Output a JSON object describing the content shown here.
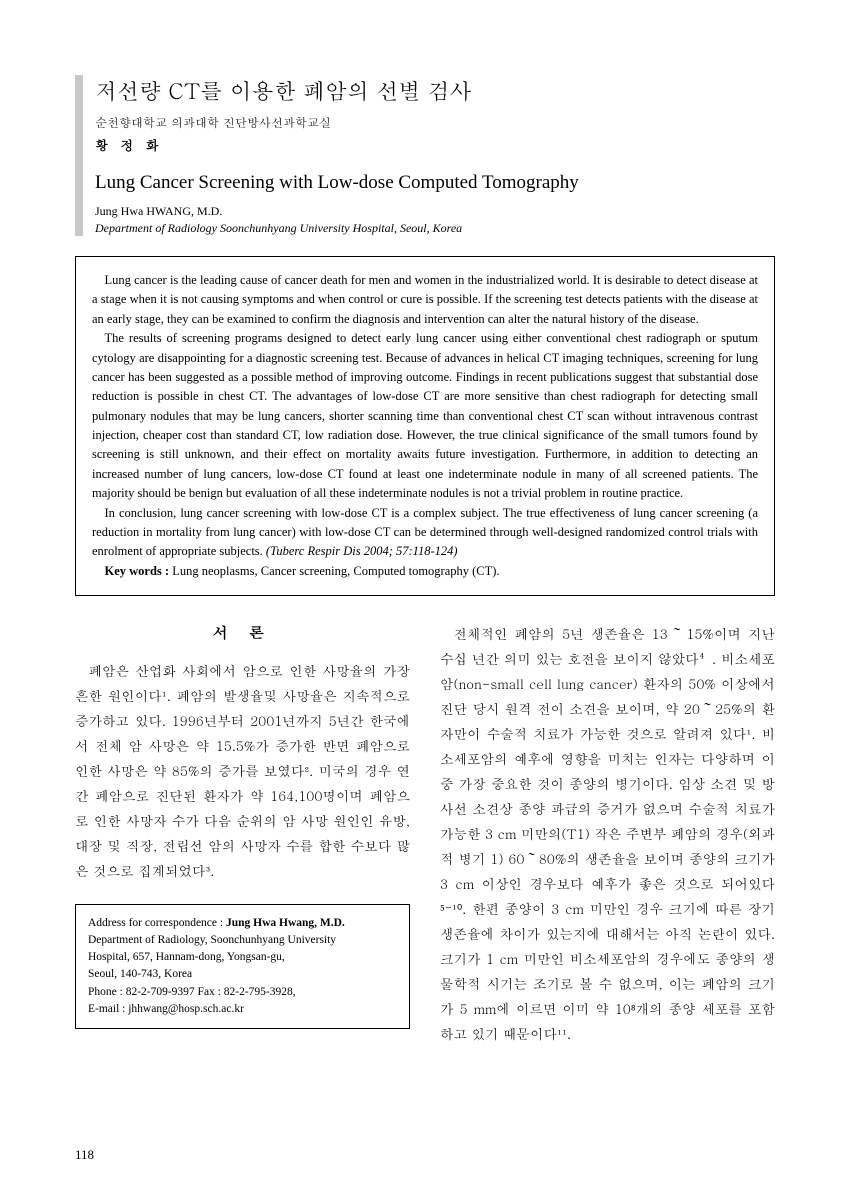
{
  "header": {
    "korean_title": "저선량 CT를 이용한 폐암의 선별 검사",
    "korean_affiliation": "순천향대학교 의과대학 진단방사선과학교실",
    "korean_author": "황 정 화",
    "english_title": "Lung Cancer Screening with Low-dose Computed Tomography",
    "english_author": "Jung Hwa HWANG, M.D.",
    "english_affiliation": "Department of Radiology Soonchunhyang University Hospital, Seoul, Korea"
  },
  "abstract": {
    "p1": "Lung cancer is the leading cause of cancer death for men and women in the industrialized world. It is desirable to detect disease at a stage when it is not causing symptoms and when control or cure is possible. If the screening test detects patients with the disease at an early stage, they can be examined to confirm the diagnosis and intervention can alter the natural history of the disease.",
    "p2": "The results of screening programs designed to detect early lung cancer using either conventional chest radiograph or sputum cytology are disappointing for a diagnostic screening test. Because of advances in helical CT imaging techniques, screening for lung cancer has been suggested as a possible method of improving outcome. Findings in recent publications suggest that substantial dose reduction is possible in chest CT. The advantages of low-dose CT are more sensitive than chest radiograph for detecting small pulmonary nodules that may be lung cancers, shorter scanning time than conventional chest CT scan without intravenous contrast injection, cheaper cost than standard CT, low radiation dose. However, the true clinical significance of the small tumors found by screening is still unknown, and their effect on mortality awaits future investigation. Furthermore, in addition to detecting an increased number of lung cancers, low-dose CT found at least one indeterminate nodule in many of all screened patients. The majority should be benign but evaluation of all these indeterminate nodules is not a trivial problem in routine practice.",
    "p3_pre": "In conclusion, lung cancer screening with low-dose CT is a complex subject. The true effectiveness of lung cancer screening (a reduction in mortality from lung cancer) with low-dose CT can be determined through well-designed randomized control trials with enrolment of appropriate subjects.  ",
    "citation": "(Tuberc Respir Dis 2004; 57:118-124)",
    "keywords_label": "Key words :",
    "keywords": " Lung neoplasms, Cancer screening, Computed tomography (CT)."
  },
  "body": {
    "section_heading": "서   론",
    "col1_p1": "폐암은 산업화 사회에서 암으로 인한 사망율의 가장 흔한 원인이다¹. 폐암의 발생율및 사망율은 지속적으로 증가하고 있다. 1996년부터 2001년까지 5년간 한국에서 전체 암 사망은 약 15.5%가 증가한 반면 폐암으로 인한 사망은 약 85%의 증가를 보였다². 미국의 경우 연간 폐암으로 진단된 환자가 약 164,100명이며 폐암으로 인한 사망자 수가 다음 순위의 암 사망 원인인 유방, 대장 및 직장, 전립선 암의 사망자 수를 합한 수보다 많은 것으로 집계되었다³.",
    "col2_p1": "전체적인 폐암의 5년 생존율은 13～15%이며 지난 수십 년간 의미 있는 호전을 보이지 않았다⁴. 비소세포암(non-small cell lung cancer) 환자의 50% 이상에서 진단 당시 원격 전이 소견을 보이며, 약 20～25%의 환자만이 수술적 치료가 가능한 것으로 알려져 있다¹. 비소세포암의 예후에 영향을 미치는 인자는 다양하며 이 중 가장 중요한 것이 종양의 병기이다. 임상 소견 및 방사선 소견상 종양 파급의 증거가 없으며 수술적 치료가 가능한 3 cm 미만의(T1) 작은 주변부 폐암의 경우(외과적 병기 1) 60～80%의 생존율을 보이며 종양의 크기가 3 cm 이상인 경우보다 예후가 좋은 것으로 되어있다⁵⁻¹⁰. 한편 종양이 3 cm 미만인 경우 크기에 따른 장기 생존율에 차이가 있는지에 대해서는 아직 논란이 있다. 크기가 1 cm 미만인 비소세포암의 경우에도 종양의 생물학적 시기는 조기로 볼 수 없으며, 이는 폐암의 크기가 5 mm에 이르면 이미 약 10⁸개의 종양 세포를 포함하고 있기 때문이다¹¹."
  },
  "correspondence": {
    "line1_pre": "Address for correspondence : ",
    "name": "Jung Hwa Hwang, M.D.",
    "line2": "Department of Radiology, Soonchunhyang University",
    "line3": "Hospital, 657, Hannam-dong, Yongsan-gu,",
    "line4": "Seoul, 140-743, Korea",
    "line5": "Phone : 82-2-709-9397   Fax : 82-2-795-3928,",
    "line6": "E-mail : jhhwang@hosp.sch.ac.kr"
  },
  "page_number": "118"
}
